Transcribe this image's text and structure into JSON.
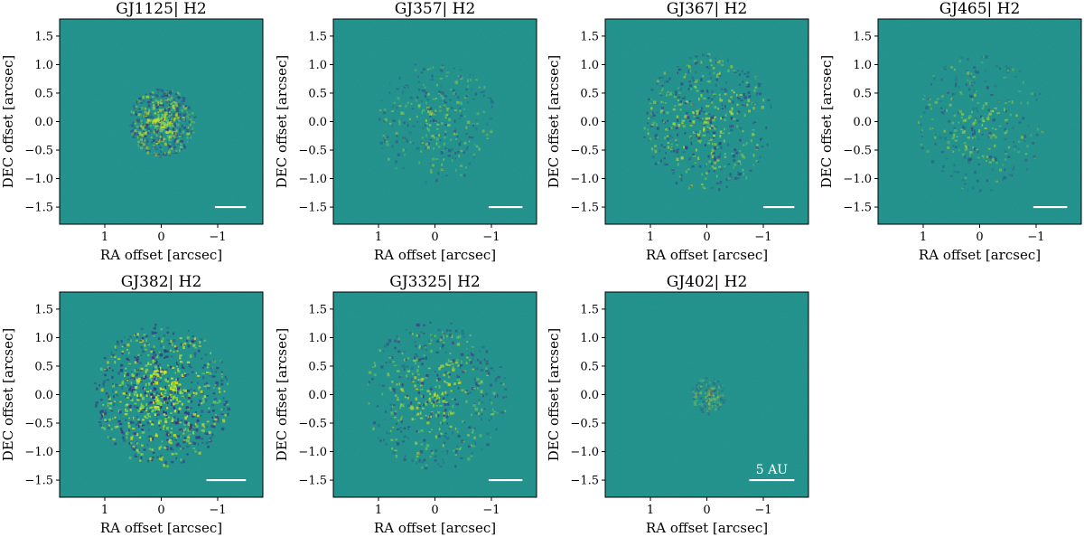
{
  "chart_data": [
    {
      "type": "heatmap",
      "title": "GJ1125| H2",
      "xlabel": "RA offset [arcsec]",
      "ylabel": "DEC offset [arcsec]",
      "xlim": [
        1.8,
        -1.8
      ],
      "ylim": [
        -1.8,
        1.8
      ],
      "xticks": [
        1,
        0,
        -1
      ],
      "yticks": [
        1.5,
        1.0,
        0.5,
        0.0,
        -0.5,
        -1.0,
        -1.5
      ],
      "ytick_labels": [
        "1.5",
        "1.0",
        "0.5",
        "0.0",
        "−0.5",
        "−1.0",
        "−1.5"
      ],
      "xtick_labels": [
        "1",
        "0",
        "−1"
      ],
      "scale_bar": {
        "x": [
          -0.95,
          -1.5
        ],
        "y": -1.5,
        "label": ""
      },
      "speckle_halo_intensity": "moderate",
      "halo_radius_arcsec": 0.55
    },
    {
      "type": "heatmap",
      "title": "GJ357| H2",
      "xlabel": "RA offset [arcsec]",
      "ylabel": "DEC offset [arcsec]",
      "xlim": [
        1.8,
        -1.8
      ],
      "ylim": [
        -1.8,
        1.8
      ],
      "xticks": [
        1,
        0,
        -1
      ],
      "yticks": [
        1.5,
        1.0,
        0.5,
        0.0,
        -0.5,
        -1.0,
        -1.5
      ],
      "ytick_labels": [
        "1.5",
        "1.0",
        "0.5",
        "0.0",
        "−0.5",
        "−1.0",
        "−1.5"
      ],
      "xtick_labels": [
        "1",
        "0",
        "−1"
      ],
      "scale_bar": {
        "x": [
          -0.95,
          -1.55
        ],
        "y": -1.5,
        "label": ""
      },
      "speckle_halo_intensity": "faint",
      "halo_radius_arcsec": 1.0
    },
    {
      "type": "heatmap",
      "title": "GJ367| H2",
      "xlabel": "RA offset [arcsec]",
      "ylabel": "DEC offset [arcsec]",
      "xlim": [
        1.8,
        -1.8
      ],
      "ylim": [
        -1.8,
        1.8
      ],
      "xticks": [
        1,
        0,
        -1
      ],
      "yticks": [
        1.5,
        1.0,
        0.5,
        0.0,
        -0.5,
        -1.0,
        -1.5
      ],
      "ytick_labels": [
        "1.5",
        "1.0",
        "0.5",
        "0.0",
        "−0.5",
        "−1.0",
        "−1.5"
      ],
      "xtick_labels": [
        "1",
        "0",
        "−1"
      ],
      "scale_bar": {
        "x": [
          -1.0,
          -1.55
        ],
        "y": -1.5,
        "label": ""
      },
      "speckle_halo_intensity": "moderate",
      "halo_radius_arcsec": 1.1
    },
    {
      "type": "heatmap",
      "title": "GJ465| H2",
      "xlabel": "RA offset [arcsec]",
      "ylabel": "DEC offset [arcsec]",
      "xlim": [
        1.8,
        -1.8
      ],
      "ylim": [
        -1.8,
        1.8
      ],
      "xticks": [
        1,
        0,
        -1
      ],
      "yticks": [
        1.5,
        1.0,
        0.5,
        0.0,
        -0.5,
        -1.0,
        -1.5
      ],
      "ytick_labels": [
        "1.5",
        "1.0",
        "0.5",
        "0.0",
        "−0.5",
        "−1.0",
        "−1.5"
      ],
      "xtick_labels": [
        "1",
        "0",
        "−1"
      ],
      "scale_bar": {
        "x": [
          -0.95,
          -1.55
        ],
        "y": -1.5,
        "label": ""
      },
      "speckle_halo_intensity": "faint",
      "halo_radius_arcsec": 1.1
    },
    {
      "type": "heatmap",
      "title": "GJ382| H2",
      "xlabel": "RA offset [arcsec]",
      "ylabel": "DEC offset [arcsec]",
      "xlim": [
        1.8,
        -1.8
      ],
      "ylim": [
        -1.8,
        1.8
      ],
      "xticks": [
        1,
        0,
        -1
      ],
      "yticks": [
        1.5,
        1.0,
        0.5,
        0.0,
        -0.5,
        -1.0,
        -1.5
      ],
      "ytick_labels": [
        "1.5",
        "1.0",
        "0.5",
        "0.0",
        "−0.5",
        "−1.0",
        "−1.5"
      ],
      "xtick_labels": [
        "1",
        "0",
        "−1"
      ],
      "scale_bar": {
        "x": [
          -0.8,
          -1.5
        ],
        "y": -1.5,
        "label": ""
      },
      "speckle_halo_intensity": "strong",
      "halo_radius_arcsec": 1.15
    },
    {
      "type": "heatmap",
      "title": "GJ3325| H2",
      "xlabel": "RA offset [arcsec]",
      "ylabel": "DEC offset [arcsec]",
      "xlim": [
        1.8,
        -1.8
      ],
      "ylim": [
        -1.8,
        1.8
      ],
      "xticks": [
        1,
        0,
        -1
      ],
      "yticks": [
        1.5,
        1.0,
        0.5,
        0.0,
        -0.5,
        -1.0,
        -1.5
      ],
      "ytick_labels": [
        "1.5",
        "1.0",
        "0.5",
        "0.0",
        "−0.5",
        "−1.0",
        "−1.5"
      ],
      "xtick_labels": [
        "1",
        "0",
        "−1"
      ],
      "scale_bar": {
        "x": [
          -0.95,
          -1.55
        ],
        "y": -1.5,
        "label": ""
      },
      "speckle_halo_intensity": "moderate",
      "halo_radius_arcsec": 1.2
    },
    {
      "type": "heatmap",
      "title": "GJ402| H2",
      "xlabel": "RA offset [arcsec]",
      "ylabel": "DEC offset [arcsec]",
      "xlim": [
        1.8,
        -1.8
      ],
      "ylim": [
        -1.8,
        1.8
      ],
      "xticks": [
        1,
        0,
        -1
      ],
      "yticks": [
        1.5,
        1.0,
        0.5,
        0.0,
        -0.5,
        -1.0,
        -1.5
      ],
      "ytick_labels": [
        "1.5",
        "1.0",
        "0.5",
        "0.0",
        "−0.5",
        "−1.0",
        "−1.5"
      ],
      "xtick_labels": [
        "1",
        "0",
        "−1"
      ],
      "scale_bar": {
        "x": [
          -0.75,
          -1.55
        ],
        "y": -1.5,
        "label": "5 AU"
      },
      "speckle_halo_intensity": "very faint",
      "halo_radius_arcsec": 0.3
    }
  ],
  "colors": {
    "background": "#21918c",
    "dark": "#3b2f7e",
    "bright": "#d6e21f",
    "scale_bar": "#ffffff"
  },
  "colormap": "viridis"
}
